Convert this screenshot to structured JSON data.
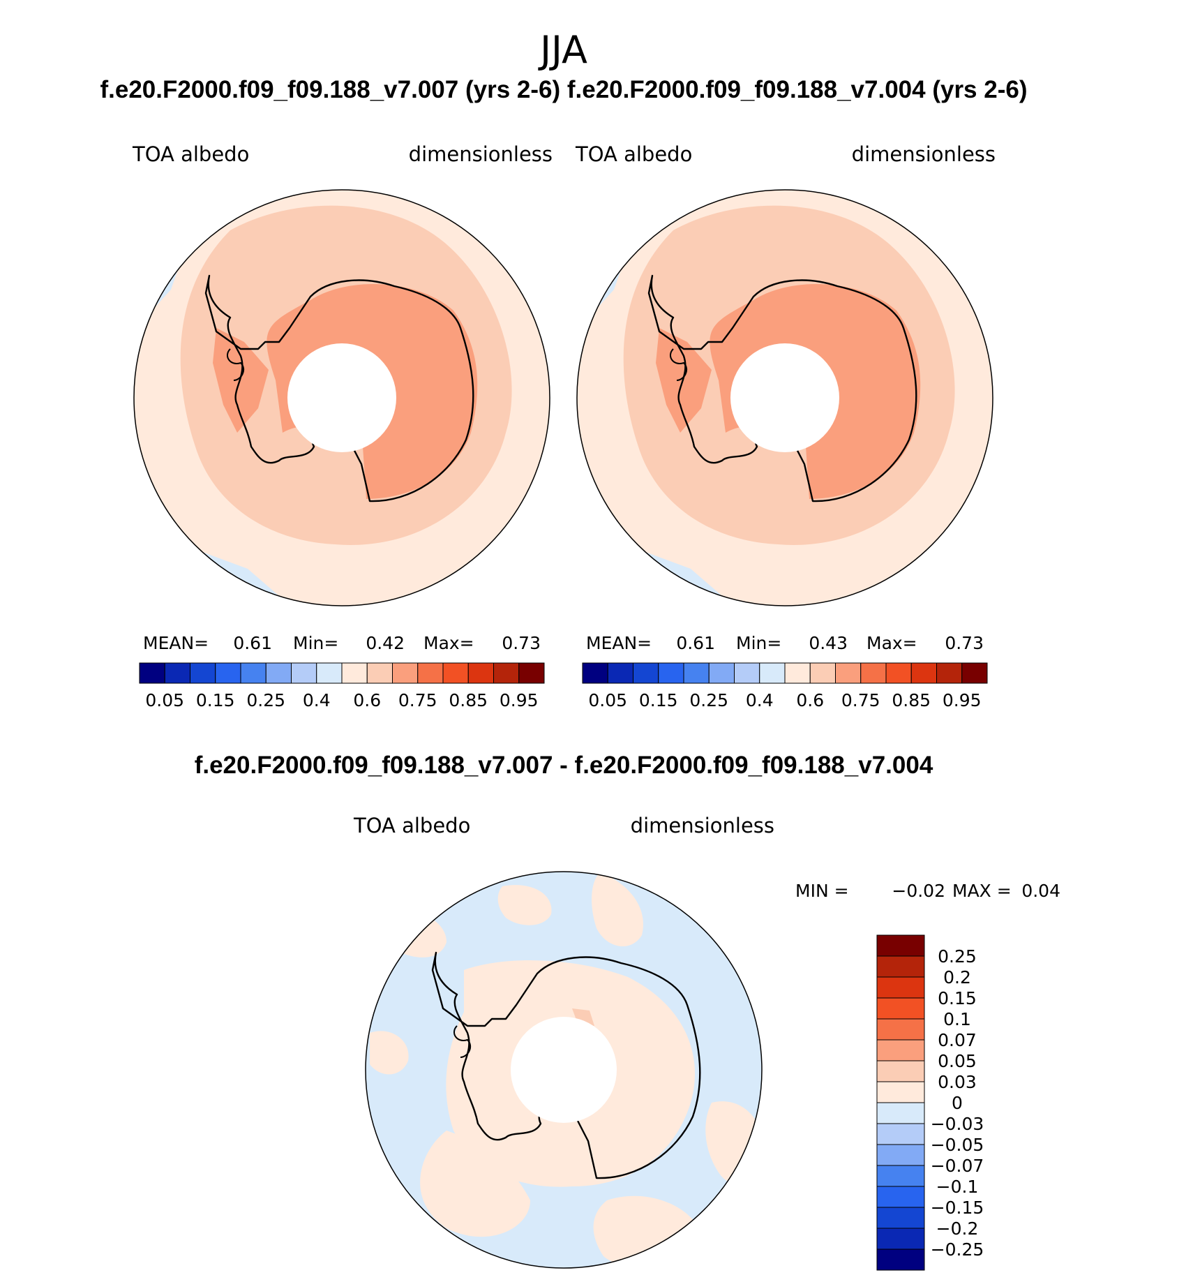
{
  "figure": {
    "title": "JJA",
    "models_title": "f.e20.F2000.f09_f09.188_v7.007 (yrs 2-6) f.e20.F2000.f09_f09.188_v7.004 (yrs 2-6)",
    "diff_title": "f.e20.F2000.f09_f09.188_v7.007 - f.e20.F2000.f09_f09.188_v7.004"
  },
  "panels": [
    {
      "variable": "TOA albedo",
      "units": "dimensionless",
      "mean_label": "MEAN=",
      "mean": "0.61",
      "min_label": "Min=",
      "min": "0.42",
      "max_label": "Max=",
      "max": "0.73"
    },
    {
      "variable": "TOA albedo",
      "units": "dimensionless",
      "mean_label": "MEAN=",
      "mean": "0.61",
      "min_label": "Min=",
      "min": "0.43",
      "max_label": "Max=",
      "max": "0.73"
    }
  ],
  "diff_panel": {
    "variable": "TOA albedo",
    "units": "dimensionless",
    "min_label": "MIN =",
    "min": "−0.02",
    "max_label": "MAX =",
    "max": "0.04"
  },
  "colorbar_abs": {
    "colors": [
      "#000080",
      "#0a28b4",
      "#1446d2",
      "#2864ef",
      "#4682f0",
      "#82aaf5",
      "#b4ccf8",
      "#d8eafa",
      "#ffeadc",
      "#fbcdb5",
      "#fa9f7d",
      "#f57147",
      "#f25124",
      "#dc3510",
      "#b4240a",
      "#780000"
    ],
    "tick_labels": [
      "0.05",
      "0.15",
      "0.25",
      "0.4",
      "0.6",
      "0.75",
      "0.85",
      "0.95"
    ]
  },
  "colorbar_diff": {
    "colors": [
      "#780000",
      "#b4240a",
      "#dc3510",
      "#f25124",
      "#f57147",
      "#fa9f7d",
      "#fbcdb5",
      "#ffeadc",
      "#d8eafa",
      "#b4ccf8",
      "#82aaf5",
      "#4682f0",
      "#2864ef",
      "#1446d2",
      "#0a28b4",
      "#000080"
    ],
    "tick_labels": [
      "0.25",
      "0.2",
      "0.15",
      "0.1",
      "0.07",
      "0.05",
      "0.03",
      "0",
      "−0.03",
      "−0.05",
      "−0.07",
      "−0.1",
      "−0.15",
      "−0.2",
      "−0.25"
    ]
  },
  "map_colors": {
    "ocean_low": "#ffeadc",
    "sea_ice": "#fbcdb5",
    "continent": "#fa9f7d",
    "negative": "#d8eafa",
    "positive": "#ffeadc",
    "coastline": "#000000"
  }
}
